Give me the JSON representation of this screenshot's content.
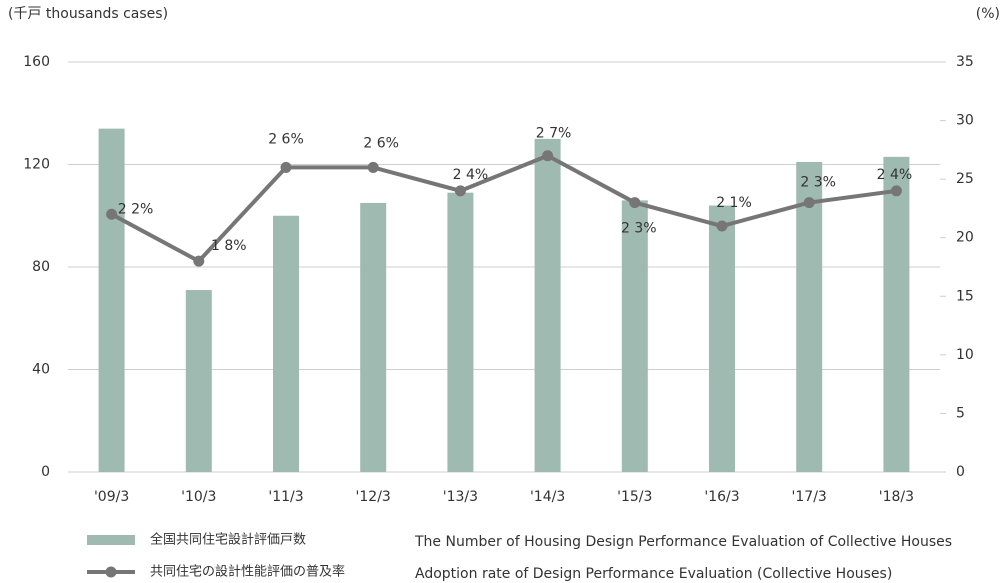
{
  "chart_data": {
    "type": "bar-line",
    "ylabel": "(千戸 thousands cases)",
    "y2label": "(%)",
    "categories": [
      "'09/3",
      "'10/3",
      "'11/3",
      "'12/3",
      "'13/3",
      "'14/3",
      "'15/3",
      "'16/3",
      "'17/3",
      "'18/3"
    ],
    "series": [
      {
        "name": "全国共同住宅設計評価戸数",
        "description": "The Number of Housing Design Performance Evaluation of Collective Houses",
        "type": "bar",
        "color": "#9fbab1",
        "values": [
          134,
          71,
          100,
          105,
          109,
          130,
          106,
          104,
          121,
          123
        ]
      },
      {
        "name": "共同住宅の設計性能評価の普及率",
        "description": "Adoption rate of Design Performance Evaluation (Collective Houses)",
        "type": "line",
        "axis": "y2",
        "color": "#767676",
        "values": [
          22,
          18,
          26,
          26,
          24,
          27,
          23,
          21,
          23,
          24
        ],
        "value_labels": [
          "2 2%",
          "1 8%",
          "2 6%",
          "2 6%",
          "2 4%",
          "2 7%",
          "2 3%",
          "2 1%",
          "2 3%",
          "2 4%"
        ]
      }
    ],
    "ylim": [
      0,
      160
    ],
    "yticks": [
      0,
      40,
      80,
      120,
      160
    ],
    "y2lim": [
      0,
      35
    ],
    "y2ticks": [
      0,
      5,
      10,
      15,
      20,
      25,
      30,
      35
    ],
    "grid": true
  }
}
